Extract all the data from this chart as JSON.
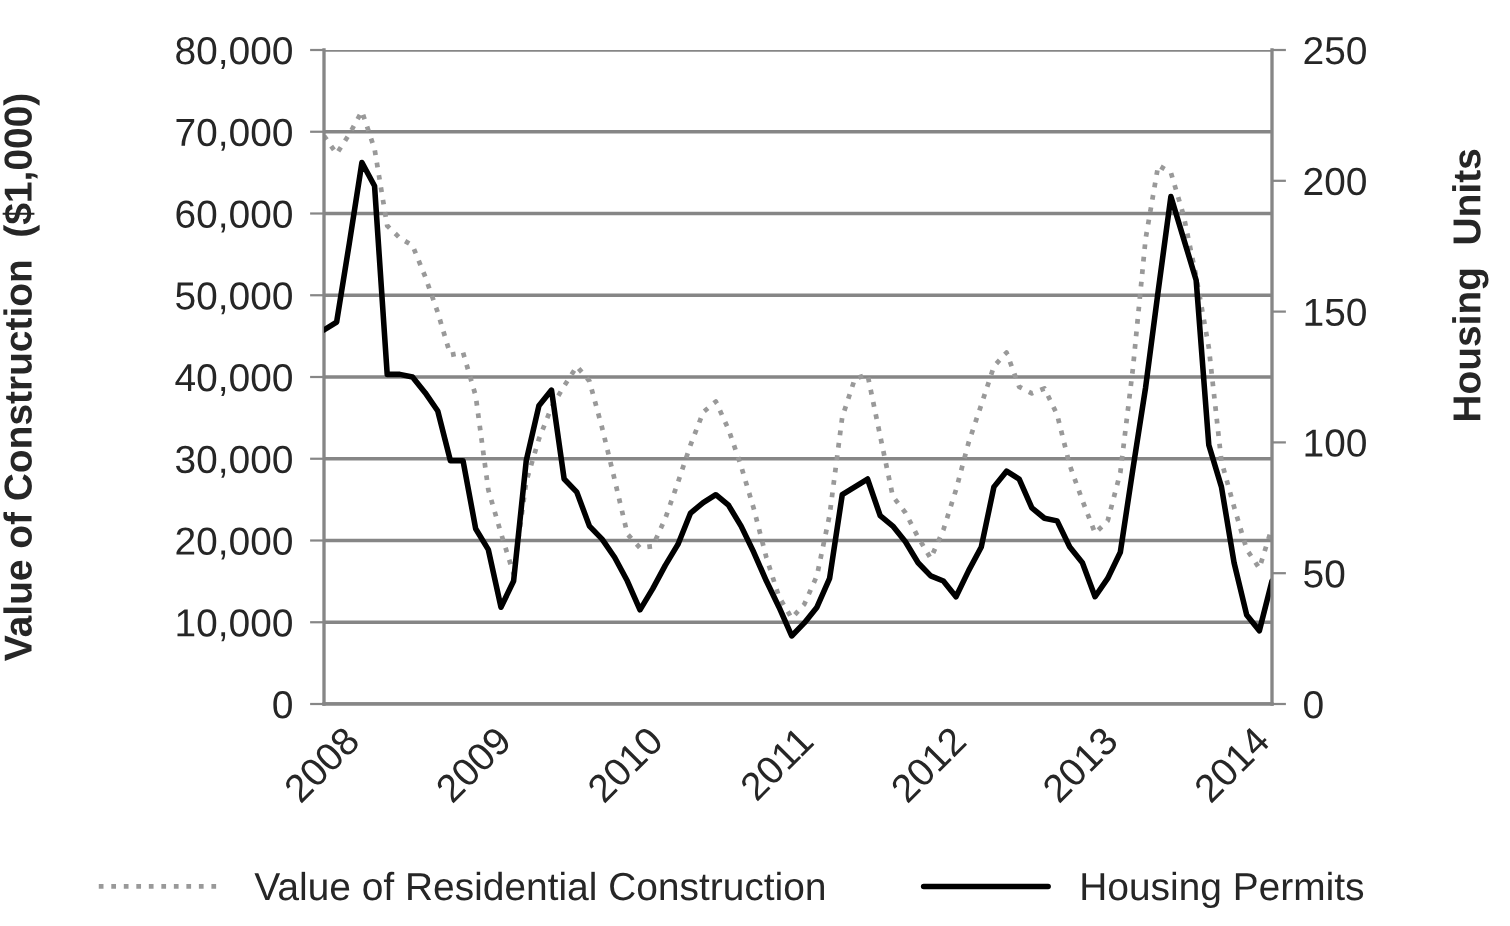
{
  "chart_data": {
    "type": "line",
    "categories": [
      "2008",
      null,
      null,
      null,
      null,
      null,
      null,
      null,
      null,
      null,
      null,
      null,
      "2009",
      null,
      null,
      null,
      null,
      null,
      null,
      null,
      null,
      null,
      null,
      null,
      "2010",
      null,
      null,
      null,
      null,
      null,
      null,
      null,
      null,
      null,
      null,
      null,
      "2011",
      null,
      null,
      null,
      null,
      null,
      null,
      null,
      null,
      null,
      null,
      null,
      "2012",
      null,
      null,
      null,
      null,
      null,
      null,
      null,
      null,
      null,
      null,
      null,
      "2013",
      null,
      null,
      null,
      null,
      null,
      null,
      null,
      null,
      null,
      null,
      null,
      "2014",
      null,
      null,
      null
    ],
    "series": [
      {
        "name": "Value of Residential Construction",
        "color": "#999999",
        "line_style": "dotted",
        "values": [
          69500,
          67300,
          69700,
          72500,
          67900,
          58500,
          57000,
          56100,
          52300,
          47900,
          42700,
          43000,
          37700,
          26200,
          20900,
          15900,
          27200,
          32400,
          36300,
          38900,
          41300,
          39500,
          33800,
          27400,
          20800,
          19100,
          19300,
          22700,
          27100,
          31700,
          35700,
          37000,
          33600,
          29100,
          23900,
          17900,
          13100,
          10500,
          12200,
          15700,
          23100,
          35100,
          39800,
          40300,
          32800,
          25400,
          23400,
          20400,
          17800,
          21300,
          26200,
          32000,
          36600,
          41300,
          43000,
          38800,
          38000,
          38600,
          35400,
          29200,
          24900,
          20900,
          22400,
          28300,
          41100,
          56900,
          65900,
          65000,
          59800,
          52300,
          43600,
          29700,
          24100,
          18900,
          16600,
          21600
        ]
      },
      {
        "name": "Housing Permits",
        "color": "#000000",
        "line_style": "solid",
        "axis": "y2",
        "values": [
          143,
          146,
          176,
          207,
          198,
          126,
          126,
          125,
          119,
          112,
          93,
          93,
          67,
          59,
          37,
          47,
          93,
          114,
          120,
          86,
          81,
          68,
          63,
          56,
          47,
          36,
          44,
          53,
          61,
          73,
          77,
          80,
          76,
          68,
          58,
          47,
          37,
          26,
          31,
          37,
          48,
          80,
          83,
          86,
          72,
          68,
          62,
          54,
          49,
          47,
          41,
          51,
          60,
          83,
          89,
          86,
          75,
          71,
          70,
          60,
          54,
          41,
          48,
          58,
          90,
          121,
          158,
          194,
          178,
          162,
          99,
          83,
          54,
          34,
          28,
          47
        ]
      }
    ],
    "ylabel": "Value of Construction  ($1,000)",
    "y2label": "Housing  Units",
    "ylim": [
      0,
      80000
    ],
    "yticks": [
      0,
      {
        "value": 10000,
        "label": "10,000"
      },
      {
        "value": 20000,
        "label": "20,000"
      },
      {
        "value": 30000,
        "label": "30,000"
      },
      {
        "value": 40000,
        "label": "40,000"
      },
      {
        "value": 50000,
        "label": "50,000"
      },
      {
        "value": 60000,
        "label": "60,000"
      },
      {
        "value": 70000,
        "label": "70,000"
      },
      {
        "value": 80000,
        "label": "80,000"
      }
    ],
    "y2lim": [
      0,
      250
    ],
    "y2ticks": [
      0,
      50,
      100,
      150,
      200,
      250
    ],
    "grid": "y",
    "legend": "bottom"
  }
}
